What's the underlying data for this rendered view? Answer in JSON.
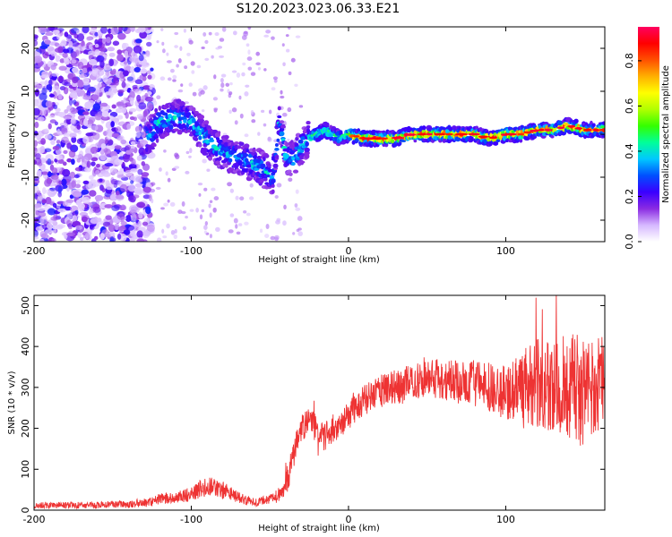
{
  "title": "S120.2023.023.06.33.E21",
  "chart_data": [
    {
      "type": "heatmap",
      "xlabel": "Height of straight line (km)",
      "ylabel": "Frequency (Hz)",
      "xlim": [
        -200,
        163
      ],
      "ylim": [
        -25,
        25
      ],
      "xticks": [
        -200,
        -100,
        0,
        100
      ],
      "xtick_labels": [
        "-200",
        "-100",
        "0",
        "100"
      ],
      "yticks": [
        -20,
        -10,
        0,
        10,
        20
      ],
      "ytick_labels": [
        "-20",
        "-10",
        "0",
        "10",
        "20"
      ],
      "grid": false,
      "colorbar": {
        "label": "Normalized spectral amplitude",
        "range": [
          0,
          0.95
        ],
        "ticks": [
          0,
          0.2,
          0.4,
          0.6,
          0.8
        ],
        "tick_labels": [
          "0.0",
          "0.2",
          "0.4",
          "0.6",
          "0.8"
        ],
        "stops": [
          "#ffffff",
          "#d6b8ff",
          "#8a2be2",
          "#3a00ff",
          "#0050ff",
          "#00c8ff",
          "#00ff99",
          "#33ff00",
          "#b0ff00",
          "#ffff00",
          "#ffb000",
          "#ff5000",
          "#ff0000",
          "#ff0060"
        ]
      },
      "ridge": {
        "x": [
          -128,
          -120,
          -110,
          -100,
          -93,
          -85,
          -75,
          -65,
          -55,
          -48,
          -44,
          -40,
          -35,
          -30,
          -25,
          -20,
          -15,
          -10,
          -5,
          0,
          10,
          20,
          30,
          40,
          50,
          60,
          70,
          80,
          90,
          100,
          110,
          120,
          130,
          140,
          150,
          160
        ],
        "y": [
          -1,
          3,
          4,
          3,
          0,
          -3,
          -5,
          -6,
          -8,
          -10,
          3,
          -5,
          -6,
          -3,
          -1,
          0,
          1,
          0,
          -1,
          0,
          -1,
          -1,
          -1,
          0,
          0,
          0,
          0,
          0,
          -1,
          0,
          0,
          1,
          1,
          2,
          1,
          1
        ]
      }
    },
    {
      "type": "line",
      "xlabel": "Height of straight line (km)",
      "ylabel": "SNR (10 * v/v)",
      "xlim": [
        -200,
        163
      ],
      "ylim": [
        0,
        525
      ],
      "xticks": [
        -200,
        -100,
        0,
        100
      ],
      "xtick_labels": [
        "-200",
        "-100",
        "0",
        "100"
      ],
      "yticks": [
        0,
        100,
        200,
        300,
        400,
        500
      ],
      "ytick_labels": [
        "0",
        "100",
        "200",
        "300",
        "400",
        "500"
      ],
      "grid": false,
      "series": [
        {
          "color": "#ee3333",
          "x": [
            -200,
            -180,
            -160,
            -140,
            -125,
            -118,
            -110,
            -100,
            -90,
            -80,
            -70,
            -60,
            -50,
            -45,
            -40,
            -36,
            -32,
            -28,
            -25,
            -20,
            -15,
            -10,
            -5,
            0,
            10,
            20,
            30,
            40,
            50,
            60,
            70,
            80,
            90,
            100,
            110,
            120,
            130,
            140,
            150,
            160,
            163
          ],
          "y": [
            12,
            12,
            12,
            15,
            20,
            30,
            30,
            40,
            60,
            50,
            30,
            20,
            25,
            35,
            60,
            120,
            180,
            210,
            230,
            190,
            180,
            200,
            210,
            230,
            270,
            290,
            300,
            310,
            320,
            320,
            310,
            310,
            300,
            290,
            300,
            310,
            310,
            300,
            290,
            300,
            310
          ]
        }
      ]
    }
  ]
}
